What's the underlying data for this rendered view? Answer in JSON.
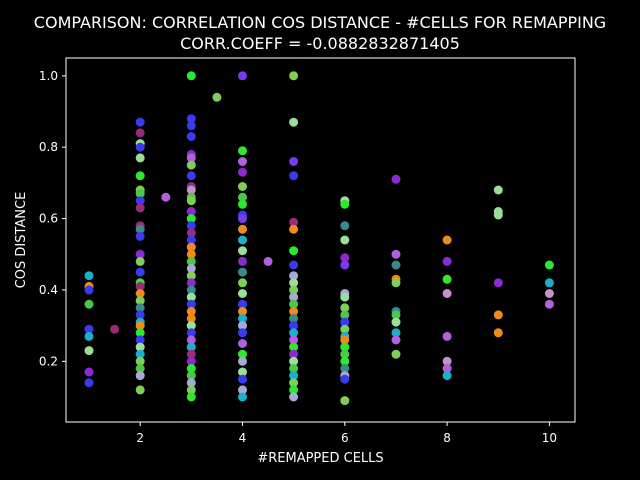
{
  "chart_data": {
    "type": "scatter",
    "title": [
      "COMPARISON: CORRELATION COS DISTANCE - #CELLS FOR REMAPPING",
      "CORR.COEFF = -0.0882832871405"
    ],
    "xlabel": "#REMAPPED CELLS",
    "ylabel": "COS DISTANCE",
    "xlim": [
      0.55,
      10.5
    ],
    "ylim": [
      0.03,
      1.05
    ],
    "xticks": [
      2,
      4,
      6,
      8,
      10
    ],
    "yticks": [
      0.2,
      0.4,
      0.6,
      0.8,
      1.0
    ],
    "grid": false,
    "legend": "none",
    "background": "#000000",
    "palette": [
      "#3a3af0",
      "#2de82d",
      "#7fce5a",
      "#8a2ad0",
      "#f08a1a",
      "#1ab0c8",
      "#a8a8d8",
      "#3a8a8a",
      "#9a2a7a",
      "#7a3af0",
      "#4ac84a",
      "#b060e0",
      "#9ade9a",
      "#c890c8"
    ],
    "points": [
      {
        "x": 1,
        "y": 0.44,
        "c": 5
      },
      {
        "x": 1,
        "y": 0.41,
        "c": 4
      },
      {
        "x": 1,
        "y": 0.4,
        "c": 0
      },
      {
        "x": 1,
        "y": 0.36,
        "c": 10
      },
      {
        "x": 1,
        "y": 0.29,
        "c": 0
      },
      {
        "x": 1,
        "y": 0.27,
        "c": 5
      },
      {
        "x": 1,
        "y": 0.23,
        "c": 12
      },
      {
        "x": 1,
        "y": 0.17,
        "c": 3
      },
      {
        "x": 1,
        "y": 0.14,
        "c": 0
      },
      {
        "x": 1.5,
        "y": 0.29,
        "c": 8
      },
      {
        "x": 2,
        "y": 0.87,
        "c": 0
      },
      {
        "x": 2,
        "y": 0.84,
        "c": 8
      },
      {
        "x": 2,
        "y": 0.81,
        "c": 12
      },
      {
        "x": 2,
        "y": 0.8,
        "c": 0
      },
      {
        "x": 2,
        "y": 0.77,
        "c": 12
      },
      {
        "x": 2,
        "y": 0.72,
        "c": 1
      },
      {
        "x": 2,
        "y": 0.68,
        "c": 2
      },
      {
        "x": 2,
        "y": 0.67,
        "c": 10
      },
      {
        "x": 2,
        "y": 0.65,
        "c": 0
      },
      {
        "x": 2,
        "y": 0.63,
        "c": 8
      },
      {
        "x": 2,
        "y": 0.58,
        "c": 8
      },
      {
        "x": 2,
        "y": 0.57,
        "c": 7
      },
      {
        "x": 2,
        "y": 0.55,
        "c": 0
      },
      {
        "x": 2,
        "y": 0.5,
        "c": 3
      },
      {
        "x": 2,
        "y": 0.48,
        "c": 2
      },
      {
        "x": 2,
        "y": 0.45,
        "c": 0
      },
      {
        "x": 2,
        "y": 0.42,
        "c": 1
      },
      {
        "x": 2,
        "y": 0.41,
        "c": 8
      },
      {
        "x": 2,
        "y": 0.39,
        "c": 4
      },
      {
        "x": 2,
        "y": 0.37,
        "c": 2
      },
      {
        "x": 2,
        "y": 0.35,
        "c": 7
      },
      {
        "x": 2,
        "y": 0.33,
        "c": 0
      },
      {
        "x": 2,
        "y": 0.31,
        "c": 5
      },
      {
        "x": 2,
        "y": 0.3,
        "c": 4
      },
      {
        "x": 2,
        "y": 0.28,
        "c": 1
      },
      {
        "x": 2,
        "y": 0.26,
        "c": 0
      },
      {
        "x": 2,
        "y": 0.24,
        "c": 12
      },
      {
        "x": 2,
        "y": 0.22,
        "c": 5
      },
      {
        "x": 2,
        "y": 0.2,
        "c": 2
      },
      {
        "x": 2,
        "y": 0.18,
        "c": 10
      },
      {
        "x": 2,
        "y": 0.16,
        "c": 6
      },
      {
        "x": 2,
        "y": 0.12,
        "c": 2
      },
      {
        "x": 2.5,
        "y": 0.66,
        "c": 11
      },
      {
        "x": 3,
        "y": 1.0,
        "c": 1
      },
      {
        "x": 3,
        "y": 0.88,
        "c": 0
      },
      {
        "x": 3,
        "y": 0.86,
        "c": 0
      },
      {
        "x": 3,
        "y": 0.83,
        "c": 0
      },
      {
        "x": 3,
        "y": 0.78,
        "c": 3
      },
      {
        "x": 3,
        "y": 0.77,
        "c": 11
      },
      {
        "x": 3,
        "y": 0.75,
        "c": 2
      },
      {
        "x": 3,
        "y": 0.72,
        "c": 0
      },
      {
        "x": 3,
        "y": 0.69,
        "c": 8
      },
      {
        "x": 3,
        "y": 0.68,
        "c": 13
      },
      {
        "x": 3,
        "y": 0.66,
        "c": 10
      },
      {
        "x": 3,
        "y": 0.65,
        "c": 2
      },
      {
        "x": 3,
        "y": 0.62,
        "c": 3
      },
      {
        "x": 3,
        "y": 0.6,
        "c": 1
      },
      {
        "x": 3,
        "y": 0.58,
        "c": 0
      },
      {
        "x": 3,
        "y": 0.56,
        "c": 8
      },
      {
        "x": 3,
        "y": 0.54,
        "c": 0
      },
      {
        "x": 3,
        "y": 0.52,
        "c": 4
      },
      {
        "x": 3,
        "y": 0.5,
        "c": 4
      },
      {
        "x": 3,
        "y": 0.48,
        "c": 10
      },
      {
        "x": 3,
        "y": 0.46,
        "c": 6
      },
      {
        "x": 3,
        "y": 0.44,
        "c": 2
      },
      {
        "x": 3,
        "y": 0.42,
        "c": 3
      },
      {
        "x": 3,
        "y": 0.4,
        "c": 7
      },
      {
        "x": 3,
        "y": 0.38,
        "c": 12
      },
      {
        "x": 3,
        "y": 0.36,
        "c": 0
      },
      {
        "x": 3,
        "y": 0.34,
        "c": 4
      },
      {
        "x": 3,
        "y": 0.32,
        "c": 4
      },
      {
        "x": 3,
        "y": 0.3,
        "c": 12
      },
      {
        "x": 3,
        "y": 0.28,
        "c": 0
      },
      {
        "x": 3,
        "y": 0.26,
        "c": 11
      },
      {
        "x": 3,
        "y": 0.24,
        "c": 5
      },
      {
        "x": 3,
        "y": 0.22,
        "c": 8
      },
      {
        "x": 3,
        "y": 0.2,
        "c": 3
      },
      {
        "x": 3,
        "y": 0.18,
        "c": 1
      },
      {
        "x": 3,
        "y": 0.16,
        "c": 10
      },
      {
        "x": 3,
        "y": 0.14,
        "c": 6
      },
      {
        "x": 3,
        "y": 0.12,
        "c": 2
      },
      {
        "x": 3,
        "y": 0.1,
        "c": 1
      },
      {
        "x": 3.5,
        "y": 0.94,
        "c": 2
      },
      {
        "x": 4,
        "y": 1.0,
        "c": 9
      },
      {
        "x": 4,
        "y": 0.79,
        "c": 1
      },
      {
        "x": 4,
        "y": 0.76,
        "c": 11
      },
      {
        "x": 4,
        "y": 0.73,
        "c": 3
      },
      {
        "x": 4,
        "y": 0.69,
        "c": 2
      },
      {
        "x": 4,
        "y": 0.66,
        "c": 10
      },
      {
        "x": 4,
        "y": 0.64,
        "c": 1
      },
      {
        "x": 4,
        "y": 0.61,
        "c": 0
      },
      {
        "x": 4,
        "y": 0.6,
        "c": 9
      },
      {
        "x": 4,
        "y": 0.57,
        "c": 4
      },
      {
        "x": 4,
        "y": 0.54,
        "c": 5
      },
      {
        "x": 4,
        "y": 0.51,
        "c": 12
      },
      {
        "x": 4,
        "y": 0.48,
        "c": 3
      },
      {
        "x": 4,
        "y": 0.45,
        "c": 7
      },
      {
        "x": 4,
        "y": 0.42,
        "c": 2
      },
      {
        "x": 4,
        "y": 0.39,
        "c": 12
      },
      {
        "x": 4,
        "y": 0.36,
        "c": 0
      },
      {
        "x": 4,
        "y": 0.34,
        "c": 4
      },
      {
        "x": 4,
        "y": 0.32,
        "c": 5
      },
      {
        "x": 4,
        "y": 0.3,
        "c": 6
      },
      {
        "x": 4,
        "y": 0.28,
        "c": 0
      },
      {
        "x": 4,
        "y": 0.25,
        "c": 11
      },
      {
        "x": 4,
        "y": 0.22,
        "c": 1
      },
      {
        "x": 4,
        "y": 0.2,
        "c": 6
      },
      {
        "x": 4,
        "y": 0.17,
        "c": 12
      },
      {
        "x": 4,
        "y": 0.15,
        "c": 0
      },
      {
        "x": 4,
        "y": 0.12,
        "c": 6
      },
      {
        "x": 4,
        "y": 0.1,
        "c": 5
      },
      {
        "x": 4.5,
        "y": 0.48,
        "c": 11
      },
      {
        "x": 5,
        "y": 1.0,
        "c": 2
      },
      {
        "x": 5,
        "y": 0.87,
        "c": 12
      },
      {
        "x": 5,
        "y": 0.76,
        "c": 9
      },
      {
        "x": 5,
        "y": 0.72,
        "c": 0
      },
      {
        "x": 5,
        "y": 0.59,
        "c": 8
      },
      {
        "x": 5,
        "y": 0.57,
        "c": 4
      },
      {
        "x": 5,
        "y": 0.51,
        "c": 1
      },
      {
        "x": 5,
        "y": 0.47,
        "c": 0
      },
      {
        "x": 5,
        "y": 0.44,
        "c": 6
      },
      {
        "x": 5,
        "y": 0.42,
        "c": 12
      },
      {
        "x": 5,
        "y": 0.4,
        "c": 2
      },
      {
        "x": 5,
        "y": 0.38,
        "c": 6
      },
      {
        "x": 5,
        "y": 0.36,
        "c": 10
      },
      {
        "x": 5,
        "y": 0.34,
        "c": 4
      },
      {
        "x": 5,
        "y": 0.32,
        "c": 7
      },
      {
        "x": 5,
        "y": 0.3,
        "c": 0
      },
      {
        "x": 5,
        "y": 0.28,
        "c": 5
      },
      {
        "x": 5,
        "y": 0.26,
        "c": 11
      },
      {
        "x": 5,
        "y": 0.24,
        "c": 1
      },
      {
        "x": 5,
        "y": 0.22,
        "c": 3
      },
      {
        "x": 5,
        "y": 0.2,
        "c": 12
      },
      {
        "x": 5,
        "y": 0.18,
        "c": 10
      },
      {
        "x": 5,
        "y": 0.16,
        "c": 5
      },
      {
        "x": 5,
        "y": 0.14,
        "c": 2
      },
      {
        "x": 5,
        "y": 0.12,
        "c": 1
      },
      {
        "x": 5,
        "y": 0.1,
        "c": 6
      },
      {
        "x": 6,
        "y": 0.65,
        "c": 12
      },
      {
        "x": 6,
        "y": 0.64,
        "c": 1
      },
      {
        "x": 6,
        "y": 0.58,
        "c": 7
      },
      {
        "x": 6,
        "y": 0.54,
        "c": 12
      },
      {
        "x": 6,
        "y": 0.49,
        "c": 3
      },
      {
        "x": 6,
        "y": 0.47,
        "c": 9
      },
      {
        "x": 6,
        "y": 0.39,
        "c": 6
      },
      {
        "x": 6,
        "y": 0.38,
        "c": 12
      },
      {
        "x": 6,
        "y": 0.35,
        "c": 2
      },
      {
        "x": 6,
        "y": 0.33,
        "c": 10
      },
      {
        "x": 6,
        "y": 0.31,
        "c": 0
      },
      {
        "x": 6,
        "y": 0.29,
        "c": 2
      },
      {
        "x": 6,
        "y": 0.27,
        "c": 5
      },
      {
        "x": 6,
        "y": 0.26,
        "c": 4
      },
      {
        "x": 6,
        "y": 0.24,
        "c": 1
      },
      {
        "x": 6,
        "y": 0.22,
        "c": 10
      },
      {
        "x": 6,
        "y": 0.2,
        "c": 1
      },
      {
        "x": 6,
        "y": 0.18,
        "c": 7
      },
      {
        "x": 6,
        "y": 0.16,
        "c": 6
      },
      {
        "x": 6,
        "y": 0.15,
        "c": 0
      },
      {
        "x": 6,
        "y": 0.09,
        "c": 2
      },
      {
        "x": 7,
        "y": 0.71,
        "c": 3
      },
      {
        "x": 7,
        "y": 0.5,
        "c": 11
      },
      {
        "x": 7,
        "y": 0.47,
        "c": 7
      },
      {
        "x": 7,
        "y": 0.43,
        "c": 4
      },
      {
        "x": 7,
        "y": 0.42,
        "c": 2
      },
      {
        "x": 7,
        "y": 0.34,
        "c": 7
      },
      {
        "x": 7,
        "y": 0.33,
        "c": 10
      },
      {
        "x": 7,
        "y": 0.31,
        "c": 12
      },
      {
        "x": 7,
        "y": 0.28,
        "c": 5
      },
      {
        "x": 7,
        "y": 0.26,
        "c": 11
      },
      {
        "x": 7,
        "y": 0.22,
        "c": 2
      },
      {
        "x": 8,
        "y": 0.54,
        "c": 4
      },
      {
        "x": 8,
        "y": 0.48,
        "c": 3
      },
      {
        "x": 8,
        "y": 0.43,
        "c": 1
      },
      {
        "x": 8,
        "y": 0.39,
        "c": 13
      },
      {
        "x": 8,
        "y": 0.27,
        "c": 11
      },
      {
        "x": 8,
        "y": 0.2,
        "c": 13
      },
      {
        "x": 8,
        "y": 0.18,
        "c": 11
      },
      {
        "x": 8,
        "y": 0.16,
        "c": 5
      },
      {
        "x": 9,
        "y": 0.68,
        "c": 12
      },
      {
        "x": 9,
        "y": 0.62,
        "c": 12
      },
      {
        "x": 9,
        "y": 0.61,
        "c": 12
      },
      {
        "x": 9,
        "y": 0.42,
        "c": 3
      },
      {
        "x": 9,
        "y": 0.33,
        "c": 4
      },
      {
        "x": 9,
        "y": 0.28,
        "c": 4
      },
      {
        "x": 10,
        "y": 0.47,
        "c": 1
      },
      {
        "x": 10,
        "y": 0.42,
        "c": 5
      },
      {
        "x": 10,
        "y": 0.39,
        "c": 13
      },
      {
        "x": 10,
        "y": 0.36,
        "c": 11
      }
    ]
  }
}
